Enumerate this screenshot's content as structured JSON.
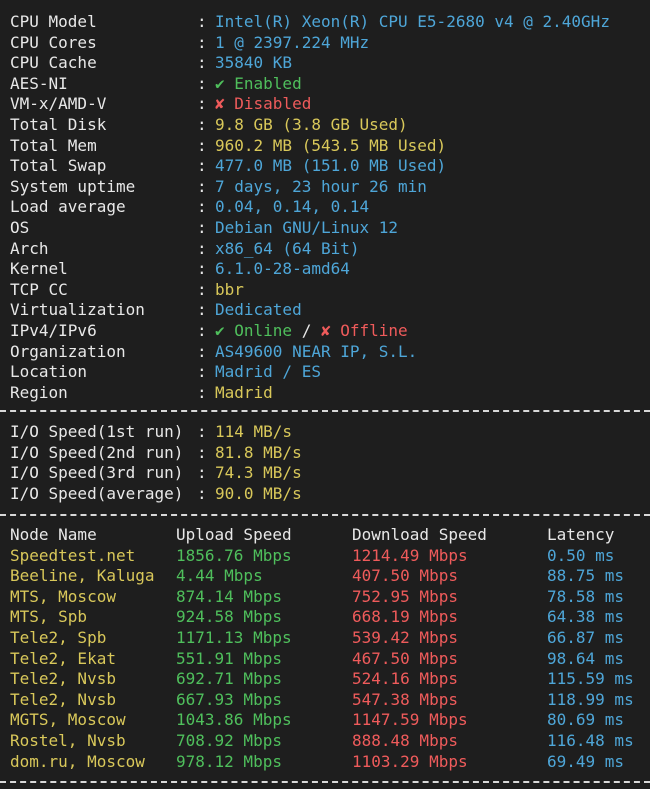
{
  "colors": {
    "background": "#1e1e1e",
    "label": "#e8e8e8",
    "blue": "#4ea6d8",
    "yellow": "#d9c85a",
    "green": "#4fbf5c",
    "red": "#ef5b5b"
  },
  "sysinfo": [
    {
      "label": "CPU Model",
      "value": "Intel(R) Xeon(R) CPU E5-2680 v4 @ 2.40GHz",
      "color": "blue"
    },
    {
      "label": "CPU Cores",
      "value": "1 @ 2397.224 MHz",
      "color": "blue"
    },
    {
      "label": "CPU Cache",
      "value": "35840 KB",
      "color": "blue"
    },
    {
      "label": "AES-NI",
      "value": "✔ Enabled",
      "color": "green"
    },
    {
      "label": "VM-x/AMD-V",
      "value": "✘ Disabled",
      "color": "red"
    },
    {
      "label": "Total Disk",
      "value": "9.8 GB (3.8 GB Used)",
      "color": "yellow"
    },
    {
      "label": "Total Mem",
      "value": "960.2 MB (543.5 MB Used)",
      "color": "yellow"
    },
    {
      "label": "Total Swap",
      "value": "477.0 MB (151.0 MB Used)",
      "color": "blue"
    },
    {
      "label": "System uptime",
      "value": "7 days, 23 hour 26 min",
      "color": "blue"
    },
    {
      "label": "Load average",
      "value": "0.04, 0.14, 0.14",
      "color": "blue"
    },
    {
      "label": "OS",
      "value": "Debian GNU/Linux 12",
      "color": "blue"
    },
    {
      "label": "Arch",
      "value": "x86_64 (64 Bit)",
      "color": "blue"
    },
    {
      "label": "Kernel",
      "value": "6.1.0-28-amd64",
      "color": "blue"
    },
    {
      "label": "TCP CC",
      "value": "bbr",
      "color": "yellow"
    },
    {
      "label": "Virtualization",
      "value": "Dedicated",
      "color": "blue"
    },
    {
      "label": "IPv4/IPv6",
      "ipv4": "✔ Online",
      "slash": " / ",
      "ipv6": "✘ Offline"
    },
    {
      "label": "Organization",
      "value": "AS49600 NEAR IP, S.L.",
      "color": "blue"
    },
    {
      "label": "Location",
      "value": "Madrid / ES",
      "color": "blue"
    },
    {
      "label": "Region",
      "value": "Madrid",
      "color": "yellow"
    }
  ],
  "io": [
    {
      "label": "I/O Speed(1st run)",
      "value": "114 MB/s"
    },
    {
      "label": "I/O Speed(2nd run)",
      "value": "81.8 MB/s"
    },
    {
      "label": "I/O Speed(3rd run)",
      "value": "74.3 MB/s"
    },
    {
      "label": "I/O Speed(average)",
      "value": "90.0 MB/s"
    }
  ],
  "speedtest": {
    "headers": {
      "node": "Node Name",
      "upload": "Upload Speed",
      "download": "Download Speed",
      "latency": "Latency"
    },
    "rows": [
      {
        "node": "Speedtest.net",
        "upload": "1856.76 Mbps",
        "download": "1214.49 Mbps",
        "latency": "0.50 ms"
      },
      {
        "node": "Beeline, Kaluga",
        "upload": "4.44 Mbps",
        "download": "407.50 Mbps",
        "latency": "88.75 ms"
      },
      {
        "node": "MTS, Moscow",
        "upload": "874.14 Mbps",
        "download": "752.95 Mbps",
        "latency": "78.58 ms"
      },
      {
        "node": "MTS, Spb",
        "upload": "924.58 Mbps",
        "download": "668.19 Mbps",
        "latency": "64.38 ms"
      },
      {
        "node": "Tele2, Spb",
        "upload": "1171.13 Mbps",
        "download": "539.42 Mbps",
        "latency": "66.87 ms"
      },
      {
        "node": "Tele2, Ekat",
        "upload": "551.91 Mbps",
        "download": "467.50 Mbps",
        "latency": "98.64 ms"
      },
      {
        "node": "Tele2, Nvsb",
        "upload": "692.71 Mbps",
        "download": "524.16 Mbps",
        "latency": "115.59 ms"
      },
      {
        "node": "Tele2, Nvsb",
        "upload": "667.93 Mbps",
        "download": "547.38 Mbps",
        "latency": "118.99 ms"
      },
      {
        "node": "MGTS, Moscow",
        "upload": "1043.86 Mbps",
        "download": "1147.59 Mbps",
        "latency": "80.69 ms"
      },
      {
        "node": "Rostel, Nvsb",
        "upload": "708.92 Mbps",
        "download": "888.48 Mbps",
        "latency": "116.48 ms"
      },
      {
        "node": "dom.ru, Moscow",
        "upload": "978.12 Mbps",
        "download": "1103.29 Mbps",
        "latency": "69.49 ms"
      }
    ]
  }
}
